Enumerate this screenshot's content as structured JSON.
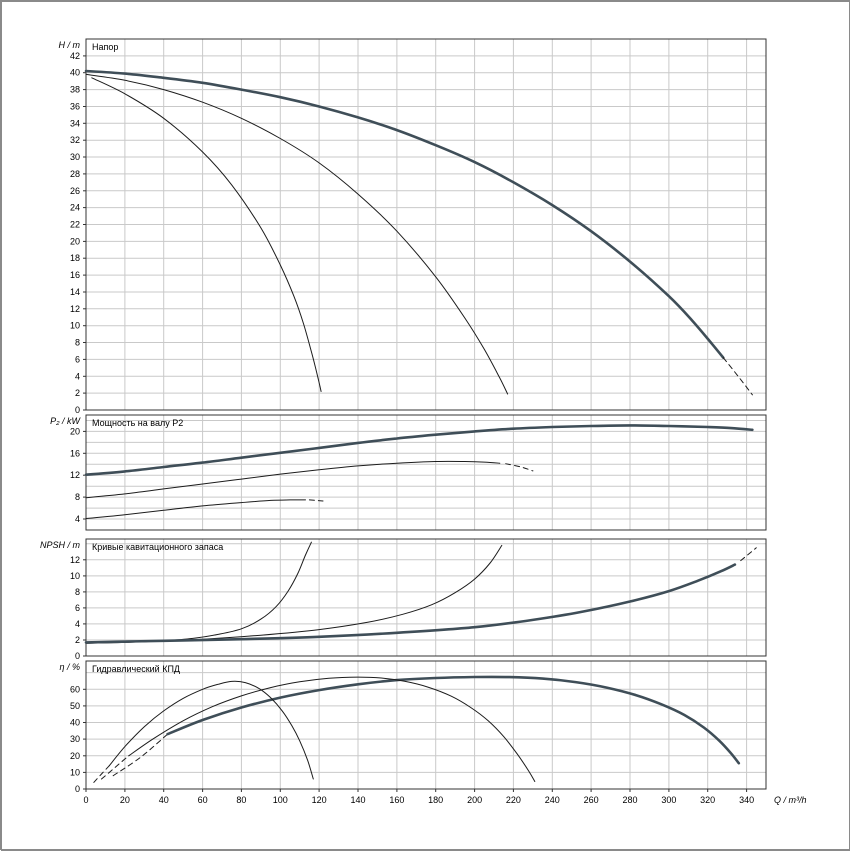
{
  "colors": {
    "background": "#ffffff",
    "grid": "#c9c9c9",
    "axis": "#333333",
    "curve_bold": "#3f4e58",
    "curve_thin": "#1c1c1c"
  },
  "figure": {
    "xlabel": "Q / m³/h",
    "xlim": [
      0,
      350
    ],
    "x_ticks": [
      0,
      20,
      40,
      60,
      80,
      100,
      120,
      140,
      160,
      180,
      200,
      220,
      240,
      260,
      280,
      300,
      320,
      340
    ]
  },
  "chart_data": [
    {
      "id": "head",
      "type": "line",
      "title": "Напор",
      "ylabel": "H / m",
      "ylim": [
        0,
        44
      ],
      "y_grid": [
        2,
        4,
        6,
        8,
        10,
        12,
        14,
        16,
        18,
        20,
        22,
        24,
        26,
        28,
        30,
        32,
        34,
        36,
        38,
        40,
        42
      ],
      "y_ticks": [
        0,
        2,
        4,
        6,
        8,
        10,
        12,
        14,
        16,
        18,
        20,
        22,
        24,
        26,
        28,
        30,
        32,
        34,
        36,
        38,
        40,
        42
      ],
      "series": [
        {
          "name": "head-large",
          "weight": "bold",
          "dash": false,
          "points": [
            [
              0,
              40.2
            ],
            [
              20,
              39.9
            ],
            [
              40,
              39.4
            ],
            [
              60,
              38.8
            ],
            [
              80,
              38.0
            ],
            [
              100,
              37.1
            ],
            [
              120,
              36.0
            ],
            [
              140,
              34.7
            ],
            [
              160,
              33.2
            ],
            [
              180,
              31.4
            ],
            [
              200,
              29.4
            ],
            [
              220,
              27.0
            ],
            [
              240,
              24.3
            ],
            [
              260,
              21.2
            ],
            [
              280,
              17.6
            ],
            [
              300,
              13.5
            ],
            [
              312,
              10.6
            ],
            [
              322,
              7.9
            ],
            [
              328,
              6.2
            ]
          ]
        },
        {
          "name": "head-large-tail",
          "weight": "thin",
          "dash": true,
          "points": [
            [
              328,
              6.2
            ],
            [
              336,
              3.9
            ],
            [
              343,
              1.8
            ]
          ]
        },
        {
          "name": "head-medium",
          "weight": "thin",
          "dash": false,
          "points": [
            [
              0,
              39.8
            ],
            [
              20,
              39.1
            ],
            [
              40,
              38.0
            ],
            [
              60,
              36.5
            ],
            [
              80,
              34.6
            ],
            [
              100,
              32.2
            ],
            [
              120,
              29.3
            ],
            [
              140,
              25.6
            ],
            [
              160,
              21.2
            ],
            [
              180,
              15.8
            ],
            [
              195,
              10.9
            ],
            [
              205,
              7.2
            ],
            [
              213,
              3.8
            ],
            [
              217,
              1.9
            ]
          ]
        },
        {
          "name": "head-small",
          "weight": "thin",
          "dash": false,
          "points": [
            [
              3,
              39.4
            ],
            [
              20,
              37.5
            ],
            [
              40,
              34.6
            ],
            [
              60,
              30.6
            ],
            [
              75,
              26.7
            ],
            [
              90,
              21.6
            ],
            [
              100,
              17.2
            ],
            [
              107,
              13.5
            ],
            [
              112,
              10.2
            ],
            [
              116,
              6.9
            ],
            [
              119,
              4.2
            ],
            [
              121,
              2.2
            ]
          ]
        }
      ]
    },
    {
      "id": "power",
      "type": "line",
      "title": "Мощность на валу P2",
      "ylabel": "P₂ / kW",
      "ylim": [
        2,
        23
      ],
      "y_grid": [
        4,
        6,
        8,
        10,
        12,
        14,
        16,
        18,
        20,
        22
      ],
      "y_ticks": [
        4,
        8,
        12,
        16,
        20
      ],
      "series": [
        {
          "name": "power-large",
          "weight": "bold",
          "dash": false,
          "points": [
            [
              0,
              12.1
            ],
            [
              20,
              12.7
            ],
            [
              40,
              13.5
            ],
            [
              60,
              14.3
            ],
            [
              80,
              15.2
            ],
            [
              100,
              16.1
            ],
            [
              120,
              17.0
            ],
            [
              140,
              17.9
            ],
            [
              160,
              18.7
            ],
            [
              180,
              19.4
            ],
            [
              200,
              20.0
            ],
            [
              220,
              20.5
            ],
            [
              240,
              20.8
            ],
            [
              260,
              21.0
            ],
            [
              280,
              21.1
            ],
            [
              300,
              21.0
            ],
            [
              320,
              20.8
            ],
            [
              332,
              20.6
            ],
            [
              343,
              20.3
            ]
          ]
        },
        {
          "name": "power-medium",
          "weight": "thin",
          "dash": false,
          "points": [
            [
              0,
              7.9
            ],
            [
              20,
              8.6
            ],
            [
              40,
              9.5
            ],
            [
              60,
              10.4
            ],
            [
              80,
              11.3
            ],
            [
              100,
              12.2
            ],
            [
              120,
              13.0
            ],
            [
              140,
              13.7
            ],
            [
              160,
              14.2
            ],
            [
              180,
              14.5
            ],
            [
              195,
              14.5
            ],
            [
              205,
              14.4
            ],
            [
              213,
              14.2
            ]
          ]
        },
        {
          "name": "power-medium-tail",
          "weight": "thin",
          "dash": true,
          "points": [
            [
              216,
              14.1
            ],
            [
              224,
              13.5
            ],
            [
              230,
              12.8
            ]
          ]
        },
        {
          "name": "power-small",
          "weight": "thin",
          "dash": false,
          "points": [
            [
              0,
              4.1
            ],
            [
              20,
              4.8
            ],
            [
              40,
              5.6
            ],
            [
              60,
              6.4
            ],
            [
              80,
              7.0
            ],
            [
              95,
              7.4
            ],
            [
              105,
              7.5
            ],
            [
              113,
              7.5
            ]
          ]
        },
        {
          "name": "power-small-tail",
          "weight": "thin",
          "dash": true,
          "points": [
            [
              115,
              7.5
            ],
            [
              122,
              7.3
            ]
          ]
        }
      ]
    },
    {
      "id": "npsh",
      "type": "line",
      "title": "Кривые кавитационного запаса",
      "ylabel": "NPSH / m",
      "ylim": [
        0,
        14.6
      ],
      "y_grid": [
        2,
        4,
        6,
        8,
        10,
        12,
        14
      ],
      "y_ticks": [
        0,
        2,
        4,
        6,
        8,
        10,
        12
      ],
      "series": [
        {
          "name": "npsh-small",
          "weight": "thin",
          "dash": false,
          "points": [
            [
              0,
              1.6
            ],
            [
              20,
              1.7
            ],
            [
              40,
              1.9
            ],
            [
              55,
              2.2
            ],
            [
              68,
              2.7
            ],
            [
              80,
              3.4
            ],
            [
              90,
              4.6
            ],
            [
              98,
              6.2
            ],
            [
              104,
              8.1
            ],
            [
              109,
              10.3
            ],
            [
              113,
              12.6
            ],
            [
              116,
              14.2
            ]
          ]
        },
        {
          "name": "npsh-medium",
          "weight": "thin",
          "dash": false,
          "points": [
            [
              0,
              1.6
            ],
            [
              30,
              1.8
            ],
            [
              60,
              2.1
            ],
            [
              90,
              2.6
            ],
            [
              120,
              3.3
            ],
            [
              145,
              4.2
            ],
            [
              163,
              5.2
            ],
            [
              178,
              6.4
            ],
            [
              190,
              7.9
            ],
            [
              200,
              9.6
            ],
            [
              208,
              11.6
            ],
            [
              214,
              13.8
            ]
          ]
        },
        {
          "name": "npsh-large",
          "weight": "bold",
          "dash": false,
          "points": [
            [
              0,
              1.7
            ],
            [
              40,
              1.9
            ],
            [
              80,
              2.1
            ],
            [
              120,
              2.4
            ],
            [
              160,
              2.9
            ],
            [
              200,
              3.6
            ],
            [
              230,
              4.5
            ],
            [
              255,
              5.5
            ],
            [
              280,
              6.8
            ],
            [
              300,
              8.1
            ],
            [
              315,
              9.4
            ],
            [
              327,
              10.6
            ],
            [
              334,
              11.4
            ]
          ]
        },
        {
          "name": "npsh-large-tail",
          "weight": "thin",
          "dash": true,
          "points": [
            [
              337,
              11.9
            ],
            [
              345,
              13.5
            ]
          ]
        }
      ]
    },
    {
      "id": "efficiency",
      "type": "line",
      "title": "Гидравлический КПД",
      "ylabel": "η / %",
      "ylim": [
        0,
        77
      ],
      "y_grid": [
        10,
        20,
        30,
        40,
        50,
        60,
        70
      ],
      "y_ticks": [
        0,
        10,
        20,
        30,
        40,
        50,
        60
      ],
      "series": [
        {
          "name": "eff-large-start",
          "weight": "thin",
          "dash": true,
          "points": [
            [
              14,
              8
            ],
            [
              28,
              19
            ],
            [
              42,
              33
            ]
          ]
        },
        {
          "name": "eff-large",
          "weight": "bold",
          "dash": false,
          "points": [
            [
              42,
              33
            ],
            [
              60,
              41.5
            ],
            [
              80,
              49
            ],
            [
              100,
              55
            ],
            [
              120,
              59.5
            ],
            [
              140,
              63
            ],
            [
              160,
              65.5
            ],
            [
              180,
              66.8
            ],
            [
              200,
              67.4
            ],
            [
              218,
              67.3
            ],
            [
              235,
              66.4
            ],
            [
              252,
              64.3
            ],
            [
              268,
              61
            ],
            [
              283,
              56.5
            ],
            [
              296,
              51
            ],
            [
              308,
              44.5
            ],
            [
              318,
              37
            ],
            [
              326,
              29
            ],
            [
              332,
              21.5
            ],
            [
              336,
              15.5
            ]
          ]
        },
        {
          "name": "eff-medium-start",
          "weight": "thin",
          "dash": true,
          "points": [
            [
              8,
              6
            ],
            [
              15,
              13
            ],
            [
              22,
              20
            ]
          ]
        },
        {
          "name": "eff-medium",
          "weight": "thin",
          "dash": false,
          "points": [
            [
              22,
              20
            ],
            [
              35,
              30.5
            ],
            [
              50,
              41
            ],
            [
              65,
              49.5
            ],
            [
              80,
              56
            ],
            [
              95,
              61
            ],
            [
              110,
              64.5
            ],
            [
              125,
              66.6
            ],
            [
              140,
              67.3
            ],
            [
              152,
              66.8
            ],
            [
              164,
              64.8
            ],
            [
              176,
              61.3
            ],
            [
              188,
              55.8
            ],
            [
              198,
              49
            ],
            [
              207,
              41
            ],
            [
              215,
              31.5
            ],
            [
              222,
              21
            ],
            [
              228,
              10.5
            ],
            [
              231,
              4.5
            ]
          ]
        },
        {
          "name": "eff-small-start",
          "weight": "thin",
          "dash": true,
          "points": [
            [
              4,
              4
            ],
            [
              8,
              9
            ],
            [
              12,
              14
            ]
          ]
        },
        {
          "name": "eff-small",
          "weight": "thin",
          "dash": false,
          "points": [
            [
              12,
              14
            ],
            [
              20,
              25.5
            ],
            [
              30,
              37.5
            ],
            [
              40,
              47
            ],
            [
              50,
              54.5
            ],
            [
              60,
              60
            ],
            [
              68,
              63
            ],
            [
              75,
              64.7
            ],
            [
              82,
              64
            ],
            [
              89,
              60.5
            ],
            [
              95,
              55
            ],
            [
              101,
              47
            ],
            [
              106,
              38
            ],
            [
              110,
              29
            ],
            [
              114,
              17.5
            ],
            [
              117,
              6
            ]
          ]
        }
      ]
    }
  ]
}
